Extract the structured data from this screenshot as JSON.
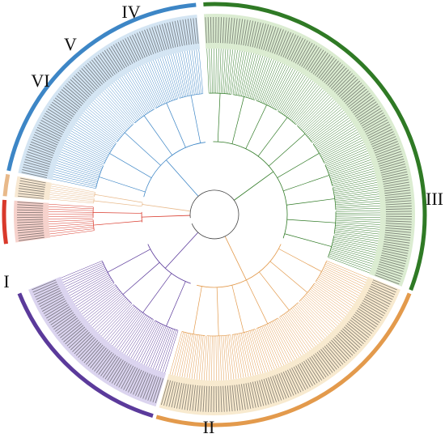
{
  "tree": {
    "clades": [
      {
        "id": "I",
        "label": "I",
        "color": "#5b3a9b",
        "fill": "#cfc6ea"
      },
      {
        "id": "II",
        "label": "II",
        "color": "#e39a4c",
        "fill": "#f6e3bf"
      },
      {
        "id": "III",
        "label": "III",
        "color": "#2f7a25",
        "fill": "#cfe6c2"
      },
      {
        "id": "IV",
        "label": "IV",
        "color": "#3d86c6",
        "fill": "#c6dcef"
      },
      {
        "id": "V",
        "label": "V",
        "color": "#e8b98a",
        "fill": "#f5e2c4"
      },
      {
        "id": "VI",
        "label": "VI",
        "color": "#d9392b",
        "fill": "#f3c3bb"
      }
    ]
  }
}
